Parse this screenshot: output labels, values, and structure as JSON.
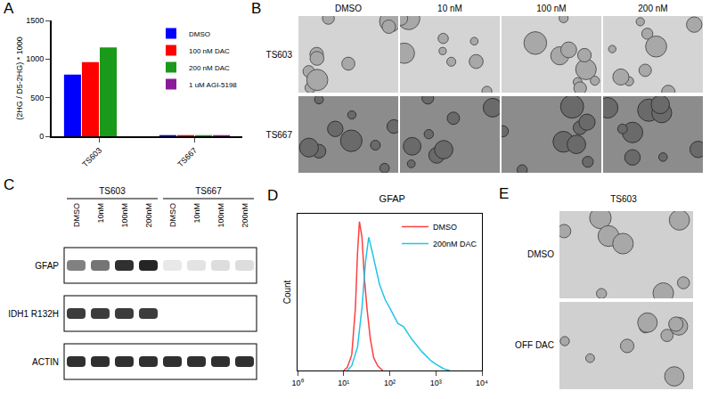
{
  "figure": {
    "panel_letters": [
      "A",
      "B",
      "C",
      "D",
      "E"
    ],
    "B": {
      "columns": [
        "DMSO",
        "10 nM",
        "100 nM",
        "200 nM"
      ],
      "rows": [
        "TS603",
        "TS667"
      ]
    },
    "C": {
      "groups": [
        "TS603",
        "TS667"
      ],
      "lanes": [
        "DMSO",
        "10nM",
        "100nM",
        "200nM"
      ],
      "blots": [
        {
          "label": "GFAP",
          "intensity": [
            0.55,
            0.6,
            0.9,
            0.95,
            0.1,
            0.12,
            0.15,
            0.15
          ]
        },
        {
          "label": "IDH1 R132H",
          "intensity": [
            0.85,
            0.85,
            0.85,
            0.85,
            0,
            0,
            0,
            0
          ]
        },
        {
          "label": "ACTIN",
          "intensity": [
            0.9,
            0.9,
            0.9,
            0.9,
            0.9,
            0.9,
            0.9,
            0.9
          ]
        }
      ]
    },
    "E": {
      "title": "TS603",
      "rows": [
        "DMSO",
        "OFF DAC"
      ]
    }
  },
  "chart_data": [
    {
      "type": "bar",
      "y_label": "(2HG / D5-2HG) * 1000",
      "categories": [
        "TS603",
        "TS667"
      ],
      "series": [
        {
          "name": "DMSO",
          "color": "#0000ff",
          "values": [
            800,
            15
          ]
        },
        {
          "name": "100 nM DAC",
          "color": "#ff0000",
          "values": [
            960,
            15
          ]
        },
        {
          "name": "200 nM DAC",
          "color": "#1a9a1a",
          "values": [
            1150,
            15
          ]
        },
        {
          "name": "1 uM AGI-5198",
          "color": "#8b1a9a",
          "values": [
            null,
            15
          ]
        }
      ],
      "ylim": [
        0,
        1500
      ],
      "yticks": [
        0,
        500,
        1000,
        1500
      ],
      "legend": "top-right",
      "grid": false
    },
    {
      "type": "line",
      "title": "GFAP",
      "y_label": "Count",
      "series": [
        {
          "name": "DMSO",
          "color": "#ff4040",
          "x": [
            10,
            12,
            15,
            18,
            20,
            22,
            25,
            28,
            32,
            38,
            45,
            55,
            70
          ],
          "values": [
            0,
            2,
            10,
            40,
            75,
            95,
            85,
            60,
            40,
            20,
            8,
            3,
            0
          ]
        },
        {
          "name": "200nM DAC",
          "color": "#22c5e8",
          "x": [
            12,
            15,
            20,
            25,
            30,
            35,
            40,
            50,
            60,
            80,
            100,
            150,
            200,
            300,
            500,
            800,
            1000,
            1500,
            2000
          ],
          "values": [
            0,
            3,
            15,
            40,
            70,
            85,
            78,
            65,
            55,
            45,
            40,
            30,
            28,
            20,
            12,
            6,
            4,
            1,
            0
          ]
        }
      ],
      "log": "x",
      "xlim": [
        1,
        10000
      ],
      "xticks": [
        {
          "value": 1,
          "label": "10⁰"
        },
        {
          "value": 10,
          "label": "10¹"
        },
        {
          "value": 100,
          "label": "10²"
        },
        {
          "value": 1000,
          "label": "10³"
        },
        {
          "value": 10000,
          "label": "10⁴"
        }
      ],
      "ylim": [
        0,
        100
      ],
      "tick_labels": "x",
      "legend": "top-right",
      "grid": false
    }
  ]
}
